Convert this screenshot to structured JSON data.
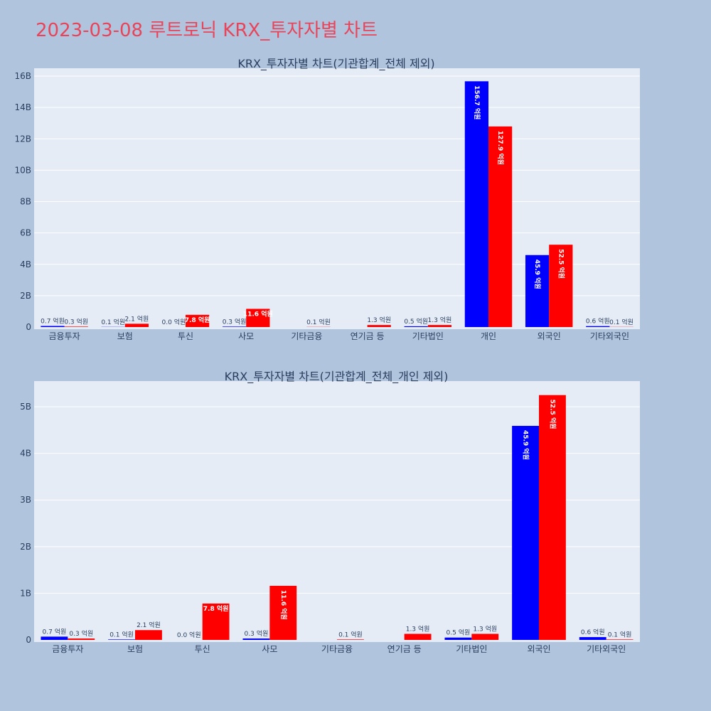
{
  "page": {
    "title": "2023-03-08 루트로닉 KRX_투자자별 차트"
  },
  "colors": {
    "background": "#b0c4de",
    "plot_background": "#e5ecf6",
    "title": "#e8455a",
    "sell": "#0000ff",
    "buy": "#ff0000"
  },
  "chart_data": [
    {
      "type": "bar",
      "title": "KRX_투자자별 차트(기관합계_전체 제외)",
      "categories": [
        "금융투자",
        "보험",
        "투신",
        "사모",
        "기타금융",
        "연기금 등",
        "기타법인",
        "개인",
        "외국인",
        "기타외국인"
      ],
      "series": [
        {
          "color": "#0000ff",
          "values": [
            70000000,
            10000000,
            0,
            30000000,
            0,
            0,
            50000000,
            15670000000,
            4590000000,
            60000000
          ],
          "labels": [
            "0.7 억원",
            "0.1 억원",
            "0.0 억원",
            "0.3 억원",
            "",
            "",
            "0.5 억원",
            "156.7 억원",
            "45.9 억원",
            "0.6 억원"
          ]
        },
        {
          "color": "#ff0000",
          "values": [
            30000000,
            210000000,
            780000000,
            1160000000,
            10000000,
            130000000,
            130000000,
            12790000000,
            5250000000,
            10000000
          ],
          "labels": [
            "0.3 억원",
            "2.1 억원",
            "7.8 억원",
            "11.6 억원",
            "0.1 억원",
            "1.3 억원",
            "1.3 억원",
            "127.9 억원",
            "52.5 억원",
            "0.1 억원"
          ]
        }
      ],
      "yticks": [
        0,
        2000000000,
        4000000000,
        6000000000,
        8000000000,
        10000000000,
        12000000000,
        14000000000,
        16000000000
      ],
      "ytick_labels": [
        "0",
        "2B",
        "4B",
        "6B",
        "8B",
        "10B",
        "12B",
        "14B",
        "16B"
      ],
      "ylim": [
        0,
        16500000000
      ],
      "grid": true,
      "legend": "none"
    },
    {
      "type": "bar",
      "title": "KRX_투자자별 차트(기관합계_전체_개인 제외)",
      "categories": [
        "금융투자",
        "보험",
        "투신",
        "사모",
        "기타금융",
        "연기금 등",
        "기타법인",
        "외국인",
        "기타외국인"
      ],
      "series": [
        {
          "color": "#0000ff",
          "values": [
            70000000,
            10000000,
            0,
            30000000,
            0,
            0,
            50000000,
            4590000000,
            60000000
          ],
          "labels": [
            "0.7 억원",
            "0.1 억원",
            "0.0 억원",
            "0.3 억원",
            "",
            "",
            "0.5 억원",
            "45.9 억원",
            "0.6 억원"
          ]
        },
        {
          "color": "#ff0000",
          "values": [
            30000000,
            210000000,
            780000000,
            1160000000,
            10000000,
            130000000,
            130000000,
            5250000000,
            10000000
          ],
          "labels": [
            "0.3 억원",
            "2.1 억원",
            "7.8 억원",
            "11.6 억원",
            "0.1 억원",
            "1.3 억원",
            "1.3 억원",
            "52.5 억원",
            "0.1 억원"
          ]
        }
      ],
      "yticks": [
        0,
        1000000000,
        2000000000,
        3000000000,
        4000000000,
        5000000000
      ],
      "ytick_labels": [
        "0",
        "1B",
        "2B",
        "3B",
        "4B",
        "5B"
      ],
      "ylim": [
        0,
        5550000000
      ],
      "grid": true,
      "legend": "none"
    }
  ]
}
